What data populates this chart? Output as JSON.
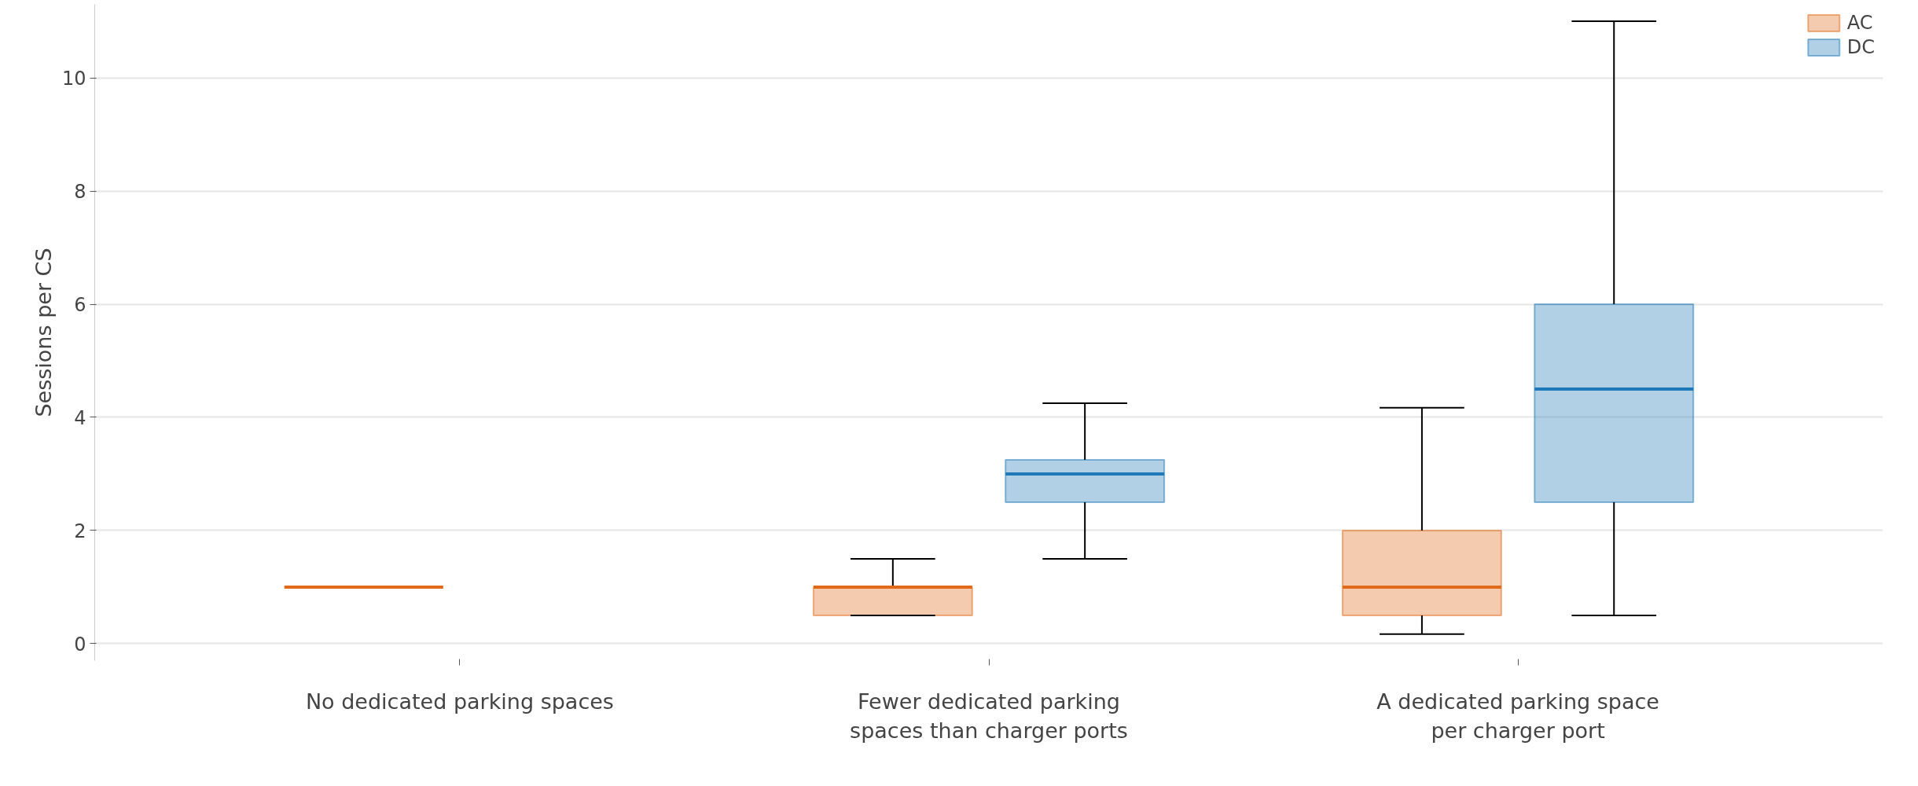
{
  "chart_data": {
    "type": "box",
    "ylabel": "Sessions per CS",
    "categories": [
      "No dedicated parking spaces",
      "Fewer dedicated parking spaces than charger ports",
      "A dedicated parking space per charger port"
    ],
    "series": [
      {
        "name": "AC",
        "color": "#e06a1a",
        "boxes": [
          {
            "low": 1,
            "q1": 1,
            "median": 1,
            "q3": 1,
            "high": 1
          },
          {
            "low": 0.5,
            "q1": 0.5,
            "median": 1,
            "q3": 1,
            "high": 1.5
          },
          {
            "low": 0.17,
            "q1": 0.5,
            "median": 1,
            "q3": 2,
            "high": 4.17
          }
        ]
      },
      {
        "name": "DC",
        "color": "#1f78b8",
        "boxes": [
          null,
          {
            "low": 1.5,
            "q1": 2.5,
            "median": 3,
            "q3": 3.25,
            "high": 4.25
          },
          {
            "low": 0.5,
            "q1": 2.5,
            "median": 4.5,
            "q3": 6,
            "high": 11
          }
        ]
      }
    ],
    "ylim": [
      -0.3,
      11.3
    ],
    "yticks": [
      0,
      2,
      4,
      6,
      8,
      10
    ],
    "grid": "y",
    "legend": "top right"
  }
}
